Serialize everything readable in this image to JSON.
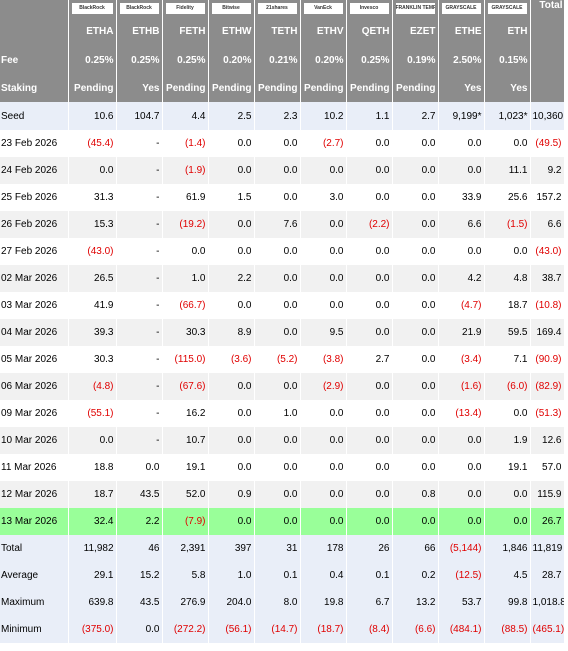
{
  "logos": [
    "BlackRock",
    "BlackRock",
    "Fidelity",
    "Bitwise",
    "21shares",
    "VanEck",
    "Invesco",
    "FRANKLIN TEMPLETON",
    "GRAYSCALE",
    "GRAYSCALE"
  ],
  "total_header": "Total",
  "tickers": [
    "ETHA",
    "ETHB",
    "FETH",
    "ETHW",
    "TETH",
    "ETHV",
    "QETH",
    "EZET",
    "ETHE",
    "ETH"
  ],
  "info_rows": [
    {
      "label": "Fee",
      "cells": [
        "0.25%",
        "0.25%",
        "0.25%",
        "0.20%",
        "0.21%",
        "0.20%",
        "0.25%",
        "0.19%",
        "2.50%",
        "0.15%"
      ]
    },
    {
      "label": "Staking",
      "cells": [
        "Pending",
        "Yes",
        "Pending",
        "Pending",
        "Pending",
        "Pending",
        "Pending",
        "Pending",
        "Yes",
        "Yes"
      ]
    }
  ],
  "seed": {
    "label": "Seed",
    "cells": [
      "10.6",
      "104.7",
      "4.4",
      "2.5",
      "2.3",
      "10.2",
      "1.1",
      "2.7",
      "9,199*",
      "1,023*",
      "10,360"
    ]
  },
  "daily_rows": [
    {
      "label": "23 Feb 2026",
      "cells": [
        "(45.4)",
        "-",
        "(1.4)",
        "0.0",
        "0.0",
        "(2.7)",
        "0.0",
        "0.0",
        "0.0",
        "0.0",
        "(49.5)"
      ]
    },
    {
      "label": "24 Feb 2026",
      "cells": [
        "0.0",
        "-",
        "(1.9)",
        "0.0",
        "0.0",
        "0.0",
        "0.0",
        "0.0",
        "0.0",
        "11.1",
        "9.2"
      ]
    },
    {
      "label": "25 Feb 2026",
      "cells": [
        "31.3",
        "-",
        "61.9",
        "1.5",
        "0.0",
        "3.0",
        "0.0",
        "0.0",
        "33.9",
        "25.6",
        "157.2"
      ]
    },
    {
      "label": "26 Feb 2026",
      "cells": [
        "15.3",
        "-",
        "(19.2)",
        "0.0",
        "7.6",
        "0.0",
        "(2.2)",
        "0.0",
        "6.6",
        "(1.5)",
        "6.6"
      ]
    },
    {
      "label": "27 Feb 2026",
      "cells": [
        "(43.0)",
        "-",
        "0.0",
        "0.0",
        "0.0",
        "0.0",
        "0.0",
        "0.0",
        "0.0",
        "0.0",
        "(43.0)"
      ]
    },
    {
      "label": "02 Mar 2026",
      "cells": [
        "26.5",
        "-",
        "1.0",
        "2.2",
        "0.0",
        "0.0",
        "0.0",
        "0.0",
        "4.2",
        "4.8",
        "38.7"
      ]
    },
    {
      "label": "03 Mar 2026",
      "cells": [
        "41.9",
        "-",
        "(66.7)",
        "0.0",
        "0.0",
        "0.0",
        "0.0",
        "0.0",
        "(4.7)",
        "18.7",
        "(10.8)"
      ]
    },
    {
      "label": "04 Mar 2026",
      "cells": [
        "39.3",
        "-",
        "30.3",
        "8.9",
        "0.0",
        "9.5",
        "0.0",
        "0.0",
        "21.9",
        "59.5",
        "169.4"
      ]
    },
    {
      "label": "05 Mar 2026",
      "cells": [
        "30.3",
        "-",
        "(115.0)",
        "(3.6)",
        "(5.2)",
        "(3.8)",
        "2.7",
        "0.0",
        "(3.4)",
        "7.1",
        "(90.9)"
      ]
    },
    {
      "label": "06 Mar 2026",
      "cells": [
        "(4.8)",
        "-",
        "(67.6)",
        "0.0",
        "0.0",
        "(2.9)",
        "0.0",
        "0.0",
        "(1.6)",
        "(6.0)",
        "(82.9)"
      ]
    },
    {
      "label": "09 Mar 2026",
      "cells": [
        "(55.1)",
        "-",
        "16.2",
        "0.0",
        "1.0",
        "0.0",
        "0.0",
        "0.0",
        "(13.4)",
        "0.0",
        "(51.3)"
      ]
    },
    {
      "label": "10 Mar 2026",
      "cells": [
        "0.0",
        "-",
        "10.7",
        "0.0",
        "0.0",
        "0.0",
        "0.0",
        "0.0",
        "0.0",
        "1.9",
        "12.6"
      ]
    },
    {
      "label": "11 Mar 2026",
      "cells": [
        "18.8",
        "0.0",
        "19.1",
        "0.0",
        "0.0",
        "0.0",
        "0.0",
        "0.0",
        "0.0",
        "19.1",
        "57.0"
      ]
    },
    {
      "label": "12 Mar 2026",
      "cells": [
        "18.7",
        "43.5",
        "52.0",
        "0.9",
        "0.0",
        "0.0",
        "0.0",
        "0.8",
        "0.0",
        "0.0",
        "115.9"
      ]
    },
    {
      "label": "13 Mar 2026",
      "highlighted": true,
      "cells": [
        "32.4",
        "2.2",
        "(7.9)",
        "0.0",
        "0.0",
        "0.0",
        "0.0",
        "0.0",
        "0.0",
        "0.0",
        "26.7"
      ]
    }
  ],
  "summary_rows": [
    {
      "label": "Total",
      "cells": [
        "11,982",
        "46",
        "2,391",
        "397",
        "31",
        "178",
        "26",
        "66",
        "(5,144)",
        "1,846",
        "11,819"
      ]
    },
    {
      "label": "Average",
      "cells": [
        "29.1",
        "15.2",
        "5.8",
        "1.0",
        "0.1",
        "0.4",
        "0.1",
        "0.2",
        "(12.5)",
        "4.5",
        "28.7"
      ]
    },
    {
      "label": "Maximum",
      "cells": [
        "639.8",
        "43.5",
        "276.9",
        "204.0",
        "8.0",
        "19.8",
        "6.7",
        "13.2",
        "53.7",
        "99.8",
        "1,018.8"
      ]
    },
    {
      "label": "Minimum",
      "cells": [
        "(375.0)",
        "0.0",
        "(272.2)",
        "(56.1)",
        "(14.7)",
        "(18.7)",
        "(8.4)",
        "(6.6)",
        "(484.1)",
        "(88.5)",
        "(465.1)"
      ]
    }
  ]
}
